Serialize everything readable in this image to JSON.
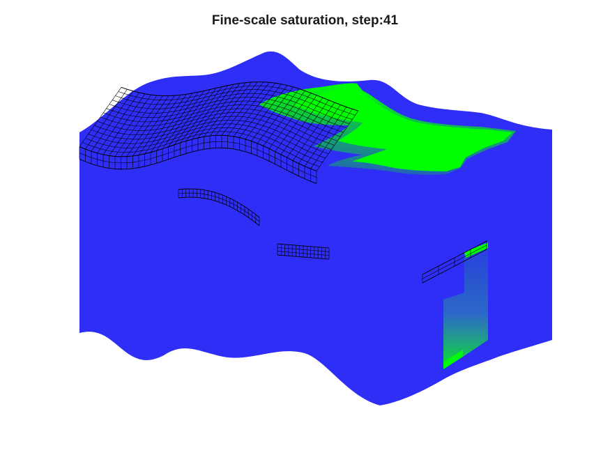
{
  "chart_data": {
    "type": "3d-surface",
    "title": "Fine-scale saturation, step:41",
    "colors": {
      "water": "#2e2ef6",
      "saturated": "#00ff00",
      "mesh": "#000000",
      "background": "#ffffff"
    },
    "grid": false,
    "axes_visible": false,
    "features": [
      {
        "name": "model-volume",
        "color": "#2e2ef6"
      },
      {
        "name": "saturation-front-top",
        "color": "#00ff00"
      },
      {
        "name": "saturation-column",
        "color": "#00ff00"
      },
      {
        "name": "well-mesh-top",
        "color": "#000000"
      },
      {
        "name": "well-mesh-segment-1",
        "color": "#000000"
      },
      {
        "name": "well-mesh-segment-2",
        "color": "#000000"
      },
      {
        "name": "well-mesh-segment-3",
        "color": "#000000"
      }
    ]
  }
}
